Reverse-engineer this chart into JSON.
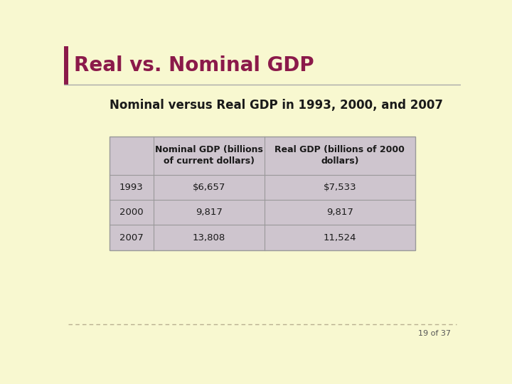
{
  "slide_title": "Real vs. Nominal GDP",
  "table_title": "Nominal versus Real GDP in 1993, 2000, and 2007",
  "col_headers": [
    "",
    "Nominal GDP (billions\nof current dollars)",
    "Real GDP (billions of 2000\ndollars)"
  ],
  "rows": [
    [
      "1993",
      "$6,657",
      "$7,533"
    ],
    [
      "2000",
      "9,817",
      "9,817"
    ],
    [
      "2007",
      "13,808",
      "11,524"
    ]
  ],
  "bg_color": "#f8f8d0",
  "header_bg": "#cec5ce",
  "row_bg": "#cec5ce",
  "slide_title_color": "#8b1a4a",
  "table_title_color": "#1a1a1a",
  "cell_text_color": "#1a1a1a",
  "title_separator_color": "#aaaaaa",
  "accent_bar_color": "#8b1a4a",
  "border_color": "#999999",
  "dashed_line_color": "#b8b090",
  "page_num_text": "19 of 37",
  "page_num_color": "#555555"
}
